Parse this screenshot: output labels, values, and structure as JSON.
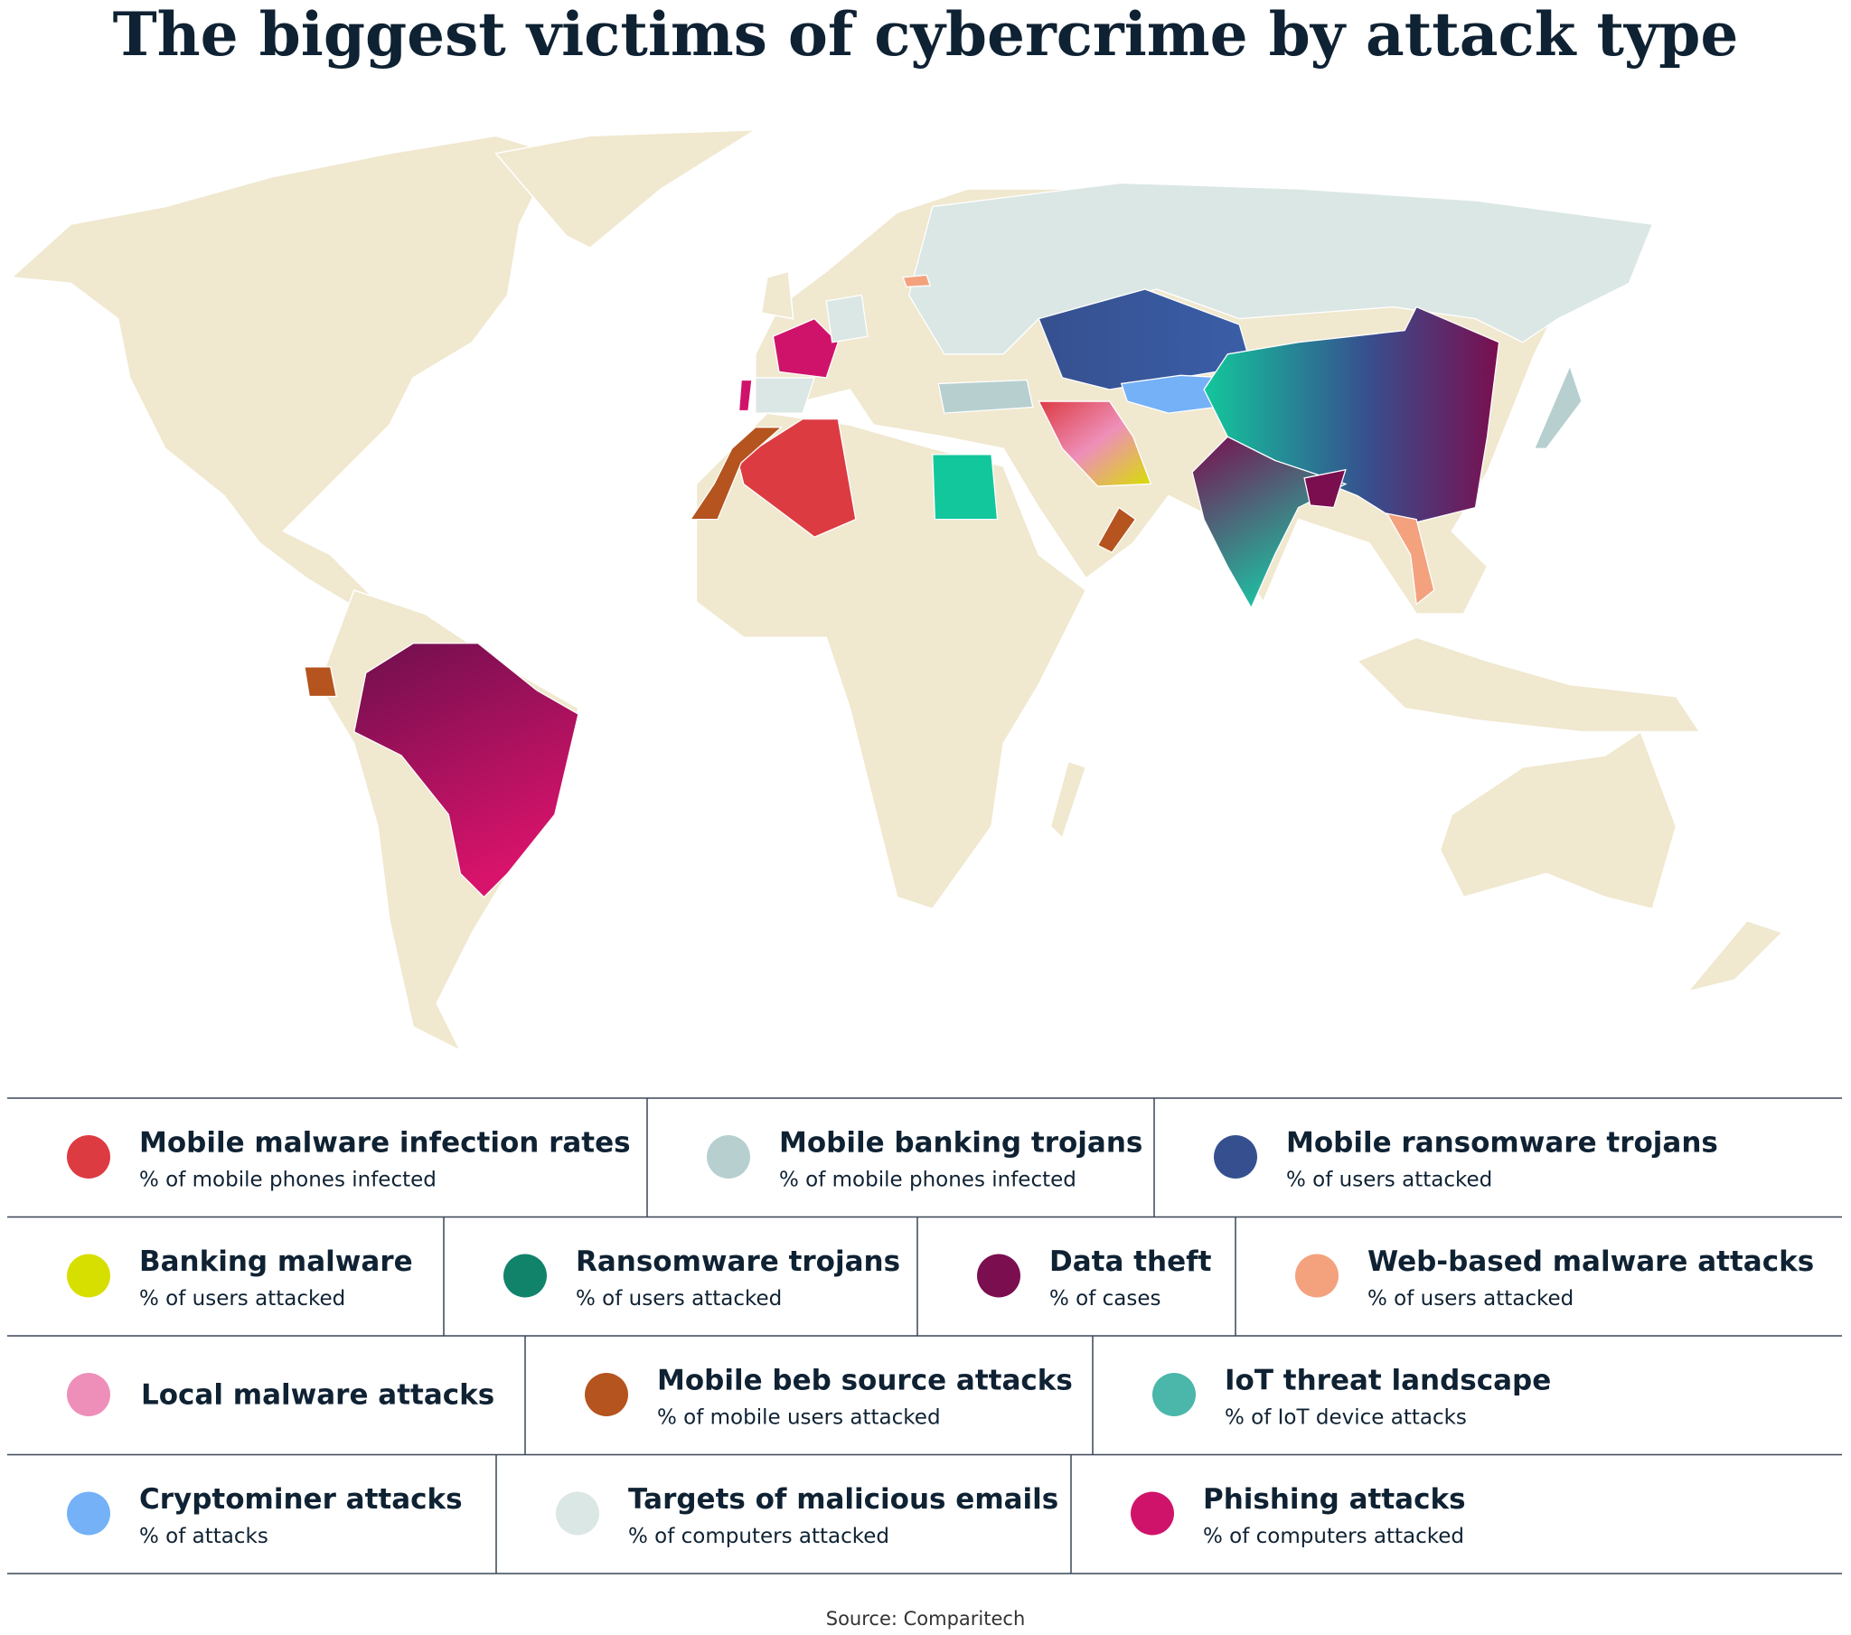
{
  "title": "The biggest victims of cybercrime by attack type",
  "legend": {
    "rows": [
      {
        "items": [
          {
            "label": "Mobile malware infection rates",
            "sublabel": "% of mobile phones infected",
            "color": "#dc3b42"
          },
          {
            "label": "Mobile banking trojans",
            "sublabel": "% of mobile phones infected",
            "color": "#b7cfcf"
          },
          {
            "label": "Mobile ransomware trojans",
            "sublabel": "% of users attacked",
            "color": "#36508f"
          }
        ]
      },
      {
        "items": [
          {
            "label": "Banking malware",
            "sublabel": "% of users attacked",
            "color": "#d7df00"
          },
          {
            "label": "Ransomware trojans",
            "sublabel": "% of users attacked",
            "color": "#11836b"
          },
          {
            "label": "Data theft",
            "sublabel": "% of cases",
            "color": "#7a0e4f"
          },
          {
            "label": "Web-based malware attacks",
            "sublabel": "% of users attacked",
            "color": "#f3a27d"
          }
        ]
      },
      {
        "items": [
          {
            "label": "Local malware attacks",
            "color": "#ee8fb9"
          },
          {
            "label": "Mobile beb source attacks",
            "sublabel": "% of mobile users attacked",
            "color": "#b5541e"
          },
          {
            "label": "IoT threat landscape",
            "sublabel": "% of IoT device attacks",
            "color": "#4bb6aa"
          }
        ]
      },
      {
        "items": [
          {
            "label": "Cryptominer attacks",
            "sublabel": "% of attacks",
            "color": "#74b1f7"
          },
          {
            "label": "Targets of malicious emails",
            "sublabel": "% of computers attacked",
            "color": "#dbe7e5"
          },
          {
            "label": "Phishing attacks",
            "sublabel": "% of computers attacked",
            "color": "#d0136a"
          }
        ]
      }
    ]
  },
  "source": "Source: Comparitech"
}
